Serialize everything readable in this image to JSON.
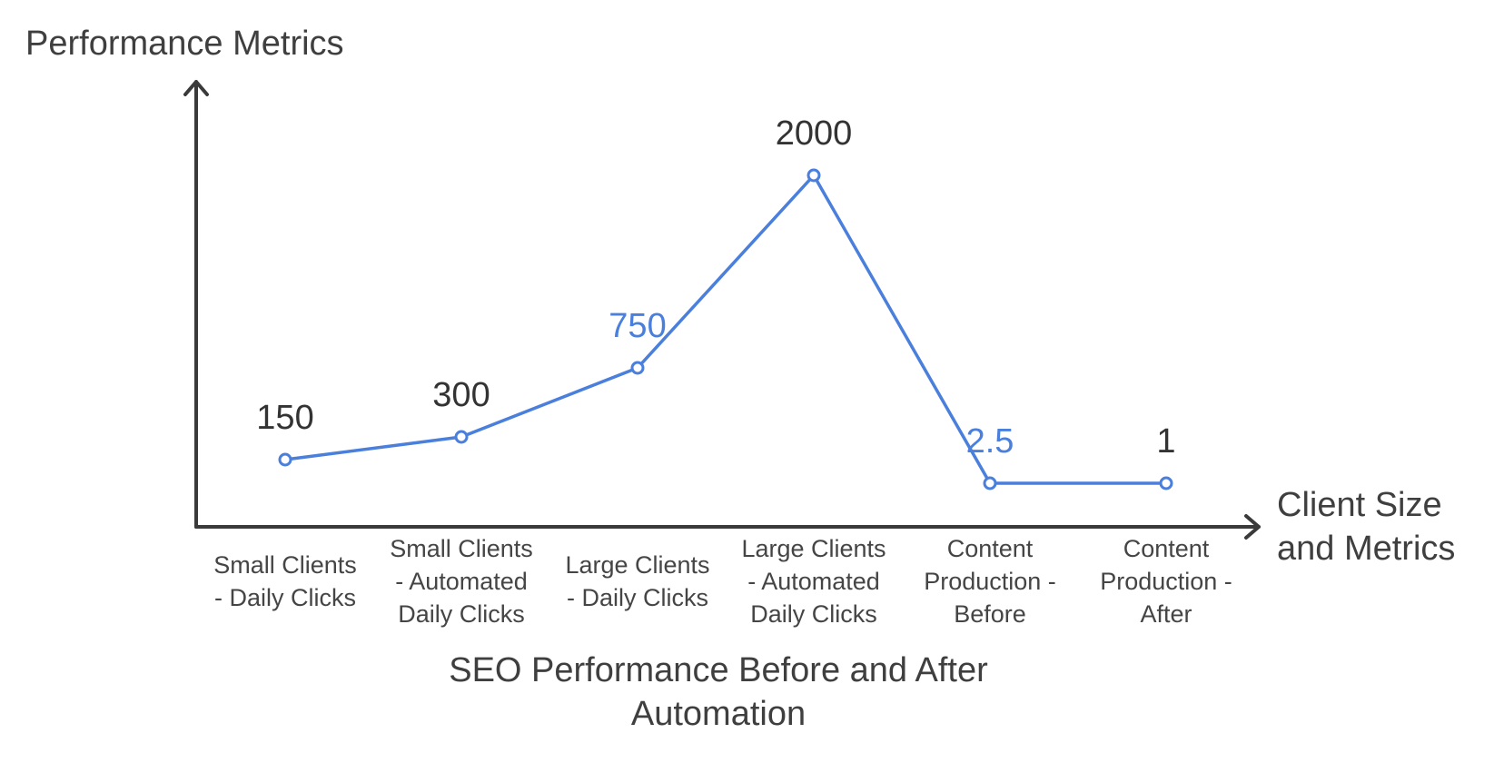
{
  "chart_data": {
    "type": "line",
    "title": [
      "SEO Performance Before and After",
      "Automation"
    ],
    "ylabel": "Performance Metrics",
    "xlabel": [
      "Client Size",
      "and Metrics"
    ],
    "categories": [
      [
        "Small Clients",
        "- Daily Clicks"
      ],
      [
        "Small Clients",
        "- Automated",
        "Daily Clicks"
      ],
      [
        "Large Clients",
        "- Daily Clicks"
      ],
      [
        "Large Clients",
        "- Automated",
        "Daily Clicks"
      ],
      [
        "Content",
        "Production -",
        "Before"
      ],
      [
        "Content",
        "Production -",
        "After"
      ]
    ],
    "values": [
      150,
      300,
      750,
      2000,
      2.5,
      1
    ],
    "data_labels": [
      "150",
      "300",
      "750",
      "2000",
      "2.5",
      "1"
    ],
    "label_colors": [
      "#333333",
      "#333333",
      "#4a7fdc",
      "#333333",
      "#4a7fdc",
      "#333333"
    ],
    "colors": {
      "line": "#4a7fdc",
      "axis": "#3a3a3a",
      "text": "#3f3f3f"
    },
    "grid": false,
    "legend": "none"
  }
}
